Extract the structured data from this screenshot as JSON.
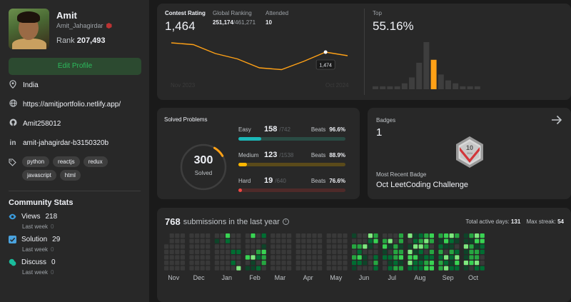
{
  "profile": {
    "name": "Amit",
    "username": "Amit_Jahagirdar",
    "rank_label": "Rank",
    "rank_value": "207,493",
    "edit_button": "Edit Profile",
    "location": "India",
    "website": "https://amitjportfolio.netlify.app/",
    "github": "Amit258012",
    "linkedin": "amit-jahagirdar-b3150320b",
    "skills": [
      "python",
      "reactjs",
      "redux",
      "javascript",
      "html"
    ]
  },
  "community": {
    "title": "Community Stats",
    "items": [
      {
        "label": "Views",
        "value": "218",
        "sub": "Last week",
        "delta": "0",
        "color": "#3a9bdc"
      },
      {
        "label": "Solution",
        "value": "29",
        "sub": "Last week",
        "delta": "0",
        "color": "#4aa3df"
      },
      {
        "label": "Discuss",
        "value": "0",
        "sub": "Last week",
        "delta": "0",
        "color": "#1abc9c"
      }
    ]
  },
  "contest": {
    "rating_label": "Contest Rating",
    "rating_value": "1,464",
    "global_label": "Global Ranking",
    "global_value": "251,174",
    "global_total": "/461,271",
    "attended_label": "Attended",
    "attended_value": "10",
    "tooltip": "1,474",
    "start_label": "Nov 2023",
    "end_label": "Oct 2024",
    "top_label": "Top",
    "top_value": "55.16%",
    "accent": "#ffa116",
    "rating_points": [
      1500,
      1495,
      1470,
      1455,
      1430,
      1425,
      1448,
      1474,
      1464
    ],
    "histogram": [
      1,
      1,
      1,
      1,
      2,
      4,
      9,
      16,
      10,
      5,
      3,
      2,
      1,
      1,
      1
    ],
    "highlight_index": 8
  },
  "solved": {
    "title": "Solved Problems",
    "total": "300",
    "total_label": "Solved",
    "beats_label": "Beats",
    "rows": [
      {
        "name": "Easy",
        "solved": "158",
        "total": "/742",
        "beats": "96.6%",
        "color": "#1cb8b8",
        "track": "#2a4b44",
        "fraction": 0.21
      },
      {
        "name": "Medium",
        "solved": "123",
        "total": "/1538",
        "beats": "88.9%",
        "color": "#ffb700",
        "track": "#5a4a1a",
        "fraction": 0.08
      },
      {
        "name": "Hard",
        "solved": "19",
        "total": "/640",
        "beats": "76.6%",
        "color": "#ef4743",
        "track": "#4e2a29",
        "fraction": 0.03
      }
    ]
  },
  "badges": {
    "label": "Badges",
    "count": "1",
    "recent_label": "Most Recent Badge",
    "recent_name": "Oct LeetCoding Challenge",
    "badge_year": "2024",
    "badge_month": "OCT",
    "badge_num": "10",
    "arrow_icon": "arrow-right-icon"
  },
  "submissions": {
    "count": "768",
    "text": "submissions in the last year",
    "active_label": "Total active days:",
    "active_value": "131",
    "streak_label": "Max streak:",
    "streak_value": "54",
    "months": [
      "Nov",
      "Dec",
      "Jan",
      "Feb",
      "Mar",
      "Apr",
      "May",
      "Jun",
      "Jul",
      "Aug",
      "Sep",
      "Oct"
    ],
    "colors": {
      "empty": "#393939",
      "l1": "#0e4429",
      "l2": "#006d32",
      "l3": "#26a641",
      "l4": "#39d353",
      "l5": "#7ee87e"
    }
  }
}
